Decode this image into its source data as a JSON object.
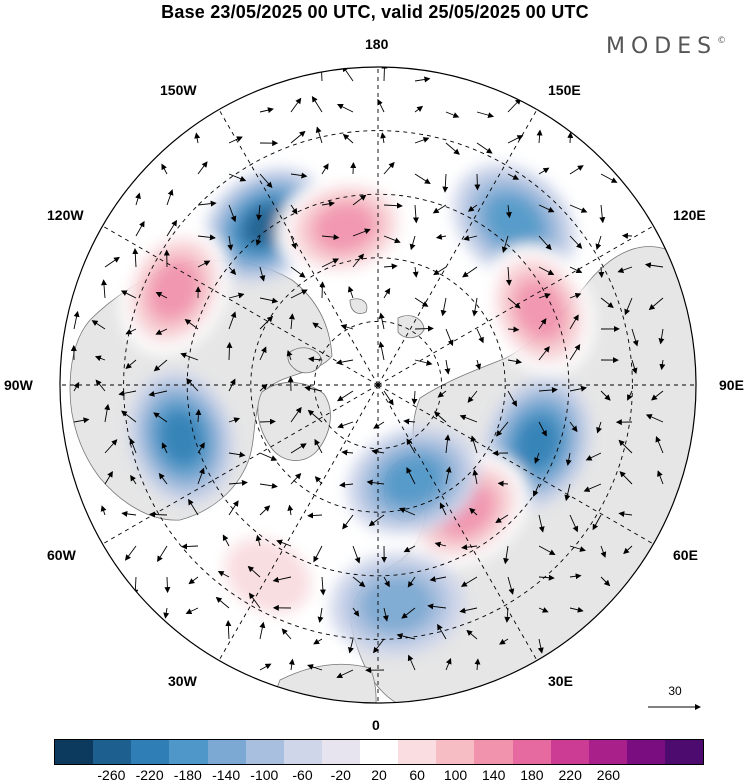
{
  "title": "Base 23/05/2025 00 UTC, valid 25/05/2025 00 UTC",
  "brand": {
    "name": "MODES",
    "mark": "©"
  },
  "longitude_labels": {
    "n180": "180",
    "e150": "150E",
    "e120": "120E",
    "e90": "90E",
    "e60": "60E",
    "e30": "30E",
    "s0": "0",
    "w30": "30W",
    "w60": "60W",
    "w90": "90W",
    "w120": "120W",
    "w150": "150W"
  },
  "reference_vector": {
    "label": "30"
  },
  "colorbar": {
    "colors": [
      "#0b3a5e",
      "#1d5f8e",
      "#2f7fb6",
      "#4f97c8",
      "#7ba9d3",
      "#a9bfdf",
      "#cfd6ea",
      "#e7e4f0",
      "#ffffff",
      "#f9dde0",
      "#f6bdc4",
      "#f293ae",
      "#e66aa0",
      "#cc3c95",
      "#a9208b",
      "#7a0d80",
      "#4e0b6f"
    ],
    "tick_labels": [
      "-260",
      "-220",
      "-180",
      "-140",
      "-100",
      "-60",
      "-20",
      "20",
      "60",
      "100",
      "140",
      "180",
      "220",
      "260"
    ]
  },
  "anomaly_centers": [
    {
      "lon": -145,
      "lat": 44,
      "value": -220
    },
    {
      "lon": -168,
      "lat": 52,
      "value": 160
    },
    {
      "lon": -115,
      "lat": 37,
      "value": 160
    },
    {
      "lon": -75,
      "lat": 42,
      "value": -180
    },
    {
      "lon": 140,
      "lat": 40,
      "value": -140
    },
    {
      "lon": 115,
      "lat": 48,
      "value": 150
    },
    {
      "lon": 70,
      "lat": 50,
      "value": -180
    },
    {
      "lon": 35,
      "lat": 54,
      "value": 170
    },
    {
      "lon": 20,
      "lat": 66,
      "value": -140
    },
    {
      "lon": 5,
      "lat": 38,
      "value": -120
    },
    {
      "lon": -30,
      "lat": 38,
      "value": 60
    }
  ]
}
